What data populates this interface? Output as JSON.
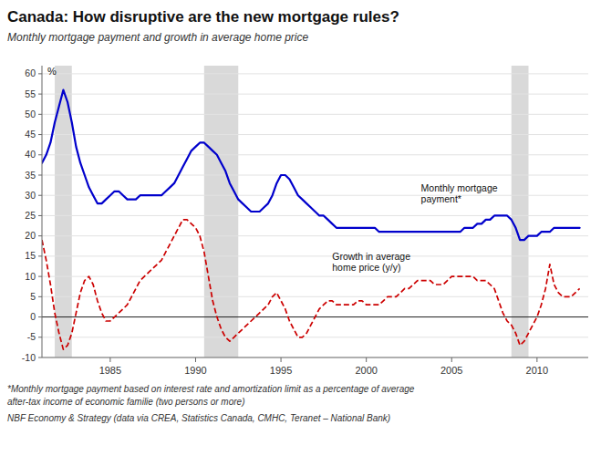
{
  "chart_data": {
    "type": "line",
    "title": "Canada: How disruptive are the new mortgage rules?",
    "subtitle": "Monthly mortgage payment and growth in average home price",
    "ylabel": "%",
    "footnotes": [
      "*Monthly mortgage payment based on interest rate and amortization limit as a percentage of average",
      "after-tax income of economic familie (two persons or more)",
      "NBF Economy & Strategy (data via CREA, Statistics Canada, CMHC, Teranet – National Bank)"
    ],
    "annotations": [
      {
        "text": "Monthly mortgage\npayment*",
        "x": 2003.2,
        "y": 30.5
      },
      {
        "text": "Growth in average\nhome price (y/y)",
        "x": 1998.0,
        "y": 13.5
      }
    ],
    "recession_bands": [
      [
        1981.75,
        1982.75
      ],
      [
        1990.5,
        1992.5
      ],
      [
        2008.5,
        2009.5
      ]
    ],
    "xlim": [
      1981,
      2013
    ],
    "xticks": [
      1985,
      1990,
      1995,
      2000,
      2005,
      2010
    ],
    "ylim": [
      -10,
      62
    ],
    "yticks": [
      -10,
      -5,
      0,
      5,
      10,
      15,
      20,
      25,
      30,
      35,
      40,
      45,
      50,
      55,
      60
    ],
    "grid": true,
    "x": [
      1981.0,
      1981.25,
      1981.5,
      1981.75,
      1982.0,
      1982.25,
      1982.5,
      1982.75,
      1983.0,
      1983.25,
      1983.5,
      1983.75,
      1984.0,
      1984.25,
      1984.5,
      1984.75,
      1985.0,
      1985.25,
      1985.5,
      1985.75,
      1986.0,
      1986.25,
      1986.5,
      1986.75,
      1987.0,
      1987.25,
      1987.5,
      1987.75,
      1988.0,
      1988.25,
      1988.5,
      1988.75,
      1989.0,
      1989.25,
      1989.5,
      1989.75,
      1990.0,
      1990.25,
      1990.5,
      1990.75,
      1991.0,
      1991.25,
      1991.5,
      1991.75,
      1992.0,
      1992.25,
      1992.5,
      1992.75,
      1993.0,
      1993.25,
      1993.5,
      1993.75,
      1994.0,
      1994.25,
      1994.5,
      1994.75,
      1995.0,
      1995.25,
      1995.5,
      1995.75,
      1996.0,
      1996.25,
      1996.5,
      1996.75,
      1997.0,
      1997.25,
      1997.5,
      1997.75,
      1998.0,
      1998.25,
      1998.5,
      1998.75,
      1999.0,
      1999.25,
      1999.5,
      1999.75,
      2000.0,
      2000.25,
      2000.5,
      2000.75,
      2001.0,
      2001.25,
      2001.5,
      2001.75,
      2002.0,
      2002.25,
      2002.5,
      2002.75,
      2003.0,
      2003.25,
      2003.5,
      2003.75,
      2004.0,
      2004.25,
      2004.5,
      2004.75,
      2005.0,
      2005.25,
      2005.5,
      2005.75,
      2006.0,
      2006.25,
      2006.5,
      2006.75,
      2007.0,
      2007.25,
      2007.5,
      2007.75,
      2008.0,
      2008.25,
      2008.5,
      2008.75,
      2009.0,
      2009.25,
      2009.5,
      2009.75,
      2010.0,
      2010.25,
      2010.5,
      2010.75,
      2011.0,
      2011.25,
      2011.5,
      2011.75,
      2012.0,
      2012.25,
      2012.5
    ],
    "series": [
      {
        "color": "#0000cc",
        "line_style": "solid",
        "values": [
          38,
          40,
          43,
          48,
          52,
          56,
          53,
          48,
          42,
          38,
          35,
          32,
          30,
          28,
          28,
          29,
          30,
          31,
          31,
          30,
          29,
          29,
          29,
          30,
          30,
          30,
          30,
          30,
          30,
          31,
          32,
          33,
          35,
          37,
          39,
          41,
          42,
          43,
          43,
          42,
          41,
          40,
          38,
          36,
          33,
          31,
          29,
          28,
          27,
          26,
          26,
          26,
          27,
          28,
          30,
          33,
          35,
          35,
          34,
          32,
          30,
          29,
          28,
          27,
          26,
          25,
          25,
          24,
          23,
          22,
          22,
          22,
          22,
          22,
          22,
          22,
          22,
          22,
          22,
          21,
          21,
          21,
          21,
          21,
          21,
          21,
          21,
          21,
          21,
          21,
          21,
          21,
          21,
          21,
          21,
          21,
          21,
          21,
          21,
          22,
          22,
          22,
          23,
          23,
          24,
          24,
          25,
          25,
          25,
          25,
          24,
          22,
          19,
          19,
          20,
          20,
          20,
          21,
          21,
          21,
          22,
          22,
          22,
          22,
          22,
          22,
          22
        ]
      },
      {
        "color": "#cc0000",
        "line_style": "dashed",
        "values": [
          19,
          14,
          8,
          1,
          -4,
          -8,
          -7,
          -4,
          1,
          6,
          9,
          10,
          8,
          4,
          1,
          -1,
          -1,
          0,
          1,
          2,
          3,
          5,
          7,
          9,
          10,
          11,
          12,
          13,
          14,
          16,
          18,
          20,
          22,
          24,
          24,
          23,
          22,
          20,
          16,
          10,
          4,
          0,
          -3,
          -5,
          -6,
          -5,
          -4,
          -3,
          -2,
          -1,
          0,
          1,
          2,
          3,
          5,
          6,
          4,
          2,
          -1,
          -3,
          -5,
          -5,
          -4,
          -2,
          0,
          2,
          3,
          4,
          4,
          3,
          3,
          3,
          3,
          3,
          4,
          4,
          3,
          3,
          3,
          3,
          4,
          5,
          5,
          5,
          6,
          7,
          7,
          8,
          9,
          9,
          9,
          9,
          8,
          8,
          8,
          9,
          10,
          10,
          10,
          10,
          10,
          10,
          9,
          9,
          9,
          8,
          7,
          4,
          1,
          -1,
          -2,
          -4,
          -7,
          -6,
          -4,
          -2,
          0,
          3,
          7,
          13,
          8,
          6,
          5,
          5,
          5,
          6,
          7
        ]
      }
    ]
  }
}
